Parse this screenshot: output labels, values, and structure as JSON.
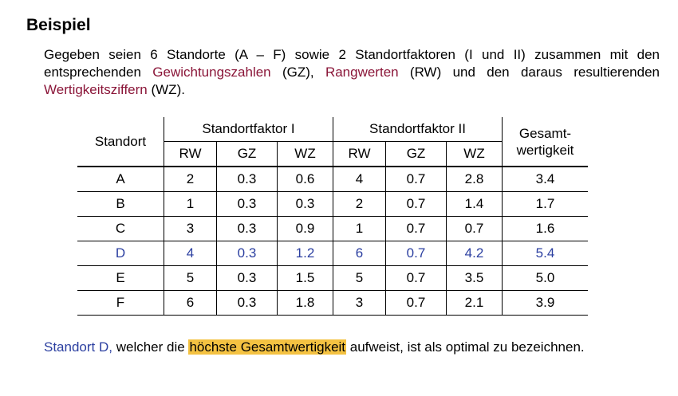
{
  "heading": "Beispiel",
  "intro": {
    "part1": "Gegeben seien 6 Standorte (A – F) sowie 2 Standortfaktoren (I und II) zusammen mit den entsprechenden ",
    "term1": "Gewichtungszahlen",
    "part2": " (GZ), ",
    "term2": "Rangwerten",
    "part3": " (RW) und den daraus resultierenden ",
    "term3": "Wertigkeitsziffern",
    "part4": " (WZ)."
  },
  "table": {
    "col_standort": "Standort",
    "group1": "Standortfaktor I",
    "group2": "Standortfaktor II",
    "col_total_line1": "Gesamt-",
    "col_total_line2": "wertigkeit",
    "sub_rw": "RW",
    "sub_gz": "GZ",
    "sub_wz": "WZ",
    "rows": [
      {
        "standort": "A",
        "rw1": "2",
        "gz1": "0.3",
        "wz1": "0.6",
        "rw2": "4",
        "gz2": "0.7",
        "wz2": "2.8",
        "total": "3.4"
      },
      {
        "standort": "B",
        "rw1": "1",
        "gz1": "0.3",
        "wz1": "0.3",
        "rw2": "2",
        "gz2": "0.7",
        "wz2": "1.4",
        "total": "1.7"
      },
      {
        "standort": "C",
        "rw1": "3",
        "gz1": "0.3",
        "wz1": "0.9",
        "rw2": "1",
        "gz2": "0.7",
        "wz2": "0.7",
        "total": "1.6"
      },
      {
        "standort": "D",
        "rw1": "4",
        "gz1": "0.3",
        "wz1": "1.2",
        "rw2": "6",
        "gz2": "0.7",
        "wz2": "4.2",
        "total": "5.4"
      },
      {
        "standort": "E",
        "rw1": "5",
        "gz1": "0.3",
        "wz1": "1.5",
        "rw2": "5",
        "gz2": "0.7",
        "wz2": "3.5",
        "total": "5.0"
      },
      {
        "standort": "F",
        "rw1": "6",
        "gz1": "0.3",
        "wz1": "1.8",
        "rw2": "3",
        "gz2": "0.7",
        "wz2": "2.1",
        "total": "3.9"
      }
    ]
  },
  "conclusion": {
    "location": "Standort D,",
    "part1": " welcher die ",
    "highlight": "höchste Gesamtwertigkeit",
    "part2": " aufweist, ist als optimal zu bezeichnen."
  },
  "colors": {
    "term": "#8a1538",
    "highlight_row": "#2b3fa0",
    "highlight_background": "#f4c242"
  }
}
